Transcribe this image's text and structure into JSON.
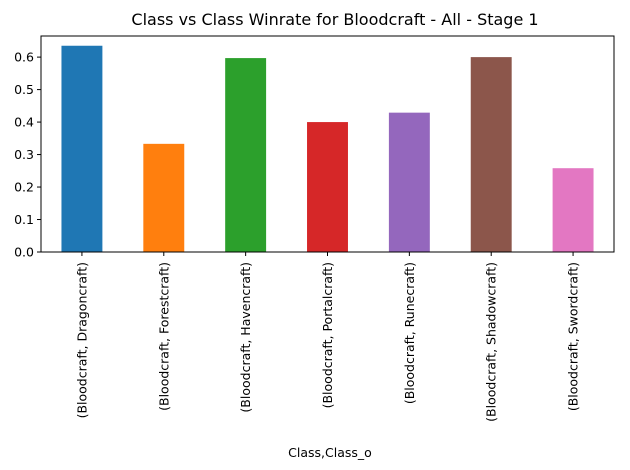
{
  "chart_data": {
    "type": "bar",
    "title": "Class vs Class Winrate for Bloodcraft - All - Stage 1",
    "xlabel": "Class,Class_o",
    "ylabel": "",
    "categories": [
      "(Bloodcraft, Dragoncraft)",
      "(Bloodcraft, Forestcraft)",
      "(Bloodcraft, Havencraft)",
      "(Bloodcraft, Portalcraft)",
      "(Bloodcraft, Runecraft)",
      "(Bloodcraft, Shadowcraft)",
      "(Bloodcraft, Swordcraft)"
    ],
    "values": [
      0.635,
      0.333,
      0.597,
      0.4,
      0.429,
      0.6,
      0.258
    ],
    "colors": [
      "#1f77b4",
      "#ff7f0e",
      "#2ca02c",
      "#d62728",
      "#9467bd",
      "#8c564b",
      "#e377c2"
    ],
    "ylim": [
      0,
      0.665
    ],
    "yticks": [
      0.0,
      0.1,
      0.2,
      0.3,
      0.4,
      0.5,
      0.6
    ],
    "ytick_labels": [
      "0.0",
      "0.1",
      "0.2",
      "0.3",
      "0.4",
      "0.5",
      "0.6"
    ],
    "grid": false,
    "legend": "none"
  }
}
